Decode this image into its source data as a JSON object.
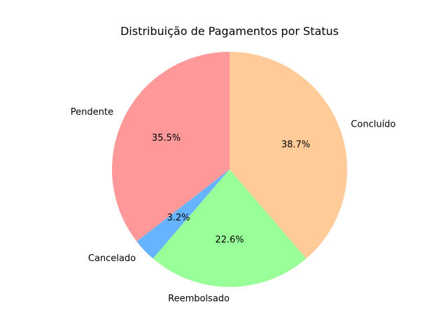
{
  "chart_data": {
    "type": "pie",
    "title": "Distribuição de Pagamentos por Status",
    "start_angle_deg": 90,
    "direction": "counterclockwise",
    "slices": [
      {
        "label": "Pendente",
        "value": 35.5,
        "pct_label": "35.5%",
        "color": "#ff9999"
      },
      {
        "label": "Cancelado",
        "value": 3.2,
        "pct_label": "3.2%",
        "color": "#66b3ff"
      },
      {
        "label": "Reembolsado",
        "value": 22.6,
        "pct_label": "22.6%",
        "color": "#99ff99"
      },
      {
        "label": "Concluído",
        "value": 38.7,
        "pct_label": "38.7%",
        "color": "#ffcc99"
      }
    ]
  }
}
